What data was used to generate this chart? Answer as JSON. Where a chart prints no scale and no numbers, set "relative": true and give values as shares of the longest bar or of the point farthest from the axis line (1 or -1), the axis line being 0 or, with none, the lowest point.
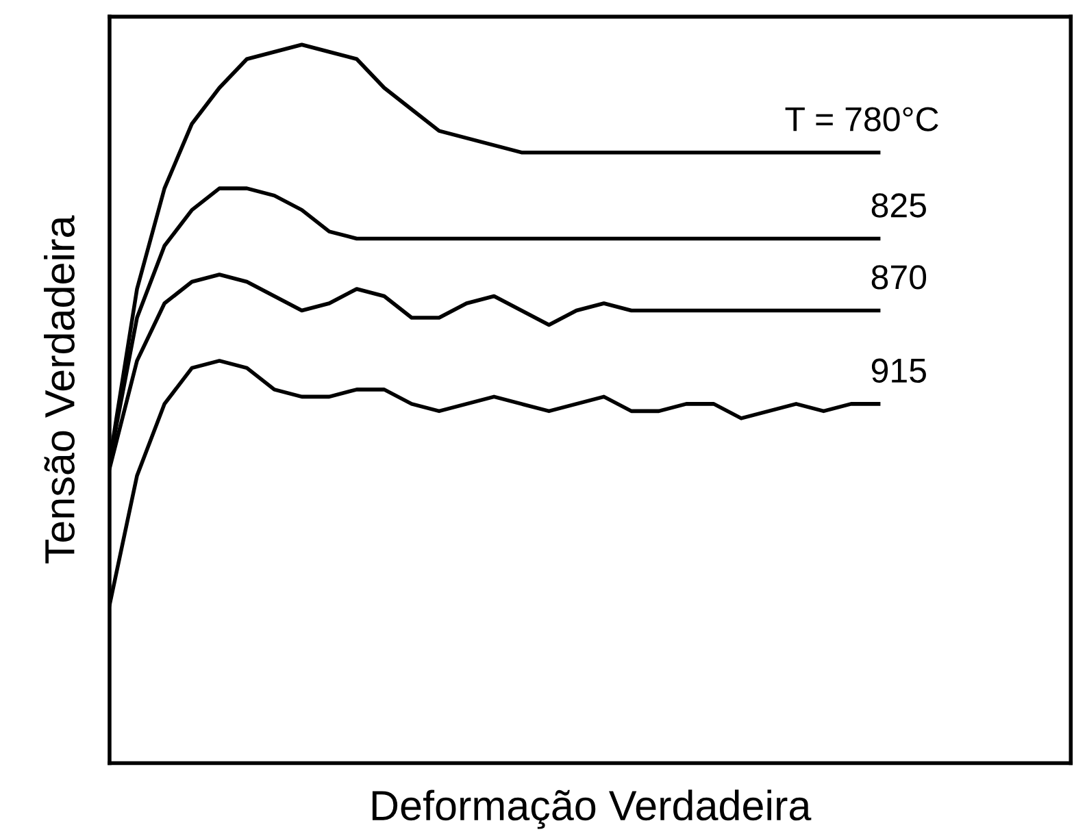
{
  "chart_data": {
    "type": "line",
    "relative": true,
    "xlabel": "Deformação Verdadeira",
    "ylabel": "Tensão Verdadeira",
    "legend": false,
    "marker": "none",
    "line_style": "solid",
    "categories": [
      null,
      null,
      null,
      null,
      null,
      null,
      null,
      null,
      null,
      null,
      null,
      null,
      null,
      null,
      null,
      null,
      null,
      null,
      null,
      null,
      null,
      null,
      null,
      null,
      null,
      null,
      null,
      null,
      null,
      null,
      null,
      null,
      null,
      null,
      null,
      null
    ],
    "series": [
      {
        "name": "T = 780°C",
        "color": "#000000",
        "values": [
          0.42,
          0.66,
          0.8,
          0.89,
          0.94,
          0.98,
          0.99,
          1.0,
          0.99,
          0.98,
          0.94,
          0.91,
          0.88,
          0.87,
          0.86,
          0.85,
          0.85,
          0.85,
          0.85,
          0.85,
          0.85,
          0.85,
          0.85,
          0.85,
          0.85,
          0.85,
          0.85,
          0.85,
          0.85,
          null,
          null,
          null,
          null,
          null,
          null,
          null
        ]
      },
      {
        "name": "825",
        "color": "#000000",
        "values": [
          0.42,
          0.62,
          0.72,
          0.77,
          0.8,
          0.8,
          0.79,
          0.77,
          0.74,
          0.73,
          0.73,
          0.73,
          0.73,
          0.73,
          0.73,
          0.73,
          0.73,
          0.73,
          0.73,
          0.73,
          0.73,
          0.73,
          0.73,
          0.73,
          0.73,
          0.73,
          0.73,
          0.73,
          0.73,
          null,
          null,
          null,
          null,
          null,
          null,
          null
        ]
      },
      {
        "name": "870",
        "color": "#000000",
        "values": [
          0.41,
          0.56,
          0.64,
          0.67,
          0.68,
          0.67,
          0.65,
          0.63,
          0.64,
          0.66,
          0.65,
          0.62,
          0.62,
          0.64,
          0.65,
          0.63,
          0.61,
          0.63,
          0.64,
          0.63,
          0.63,
          0.63,
          0.63,
          0.63,
          0.63,
          0.63,
          0.63,
          0.63,
          0.63,
          null,
          null,
          null,
          null,
          null,
          null,
          null
        ]
      },
      {
        "name": "915",
        "color": "#000000",
        "values": [
          0.22,
          0.4,
          0.5,
          0.55,
          0.56,
          0.55,
          0.52,
          0.51,
          0.51,
          0.52,
          0.52,
          0.5,
          0.49,
          0.5,
          0.51,
          0.5,
          0.49,
          0.5,
          0.51,
          0.49,
          0.49,
          0.5,
          0.5,
          0.48,
          0.49,
          0.5,
          0.49,
          0.5,
          0.5,
          null,
          null,
          null,
          null,
          null,
          null,
          null
        ]
      }
    ]
  }
}
